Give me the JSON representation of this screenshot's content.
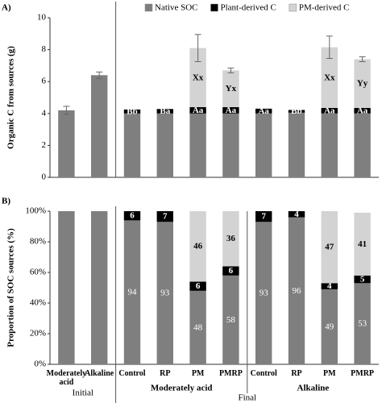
{
  "chart_data": [
    {
      "type": "bar",
      "stacked": true,
      "panel_label": "A)",
      "ylabel": "Organic C from sources (g)",
      "categories": [
        "Moderately acid",
        "Alkaline",
        "Control",
        "RP",
        "PM",
        "PMRP",
        "Control",
        "RP",
        "PM",
        "PMRP"
      ],
      "series": [
        {
          "name": "Native SOC",
          "color": "#7f7f7f",
          "values": [
            4.2,
            6.4,
            4.0,
            4.0,
            4.0,
            4.0,
            4.0,
            4.05,
            4.0,
            4.0
          ]
        },
        {
          "name": "Plant-derived C",
          "color": "#000000",
          "values": [
            null,
            null,
            0.25,
            0.28,
            0.4,
            0.4,
            0.3,
            0.17,
            0.35,
            0.35
          ],
          "letters": [
            null,
            null,
            "Bb",
            "Ba",
            "Aa",
            "Aa",
            "Aa",
            "Bb",
            "Aa",
            "Aa"
          ]
        },
        {
          "name": "PM-derived C",
          "color": "#d3d3d3",
          "values": [
            null,
            null,
            null,
            null,
            3.7,
            2.3,
            null,
            null,
            3.8,
            3.05
          ],
          "letters": [
            null,
            null,
            null,
            null,
            "Xx",
            "Yx",
            null,
            null,
            "Xx",
            "Yy"
          ]
        }
      ],
      "errors": [
        0.25,
        0.2,
        null,
        null,
        0.85,
        0.15,
        null,
        null,
        0.7,
        0.15
      ],
      "ylim": [
        0,
        10
      ],
      "yticks": [
        0,
        2,
        4,
        6,
        8,
        10
      ],
      "legend": "top"
    },
    {
      "type": "bar",
      "stacked": true,
      "panel_label": "B)",
      "ylabel": "Proportion of SOC sources (%)",
      "categories": [
        "Moderately acid",
        "Alkaline",
        "Control",
        "RP",
        "PM",
        "PMRP",
        "Control",
        "RP",
        "PM",
        "PMRP"
      ],
      "group_labels": [
        "Initial",
        "Moderately acid",
        "Alkaline",
        "Final"
      ],
      "series": [
        {
          "color": "#7f7f7f",
          "values": [
            100,
            100,
            94,
            93,
            48,
            58,
            93,
            96,
            49,
            53
          ],
          "value_labels": [
            null,
            null,
            "94",
            "93",
            "48",
            "58",
            "93",
            "96",
            "49",
            "53"
          ]
        },
        {
          "color": "#000000",
          "values": [
            null,
            null,
            6,
            7,
            6,
            6,
            7,
            4,
            4,
            5
          ],
          "value_labels": [
            null,
            null,
            "6",
            "7",
            "6",
            "6",
            "7",
            "4",
            "4",
            "5"
          ]
        },
        {
          "color": "#d3d3d3",
          "values": [
            null,
            null,
            null,
            null,
            46,
            36,
            null,
            null,
            47,
            41
          ],
          "value_labels": [
            null,
            null,
            null,
            null,
            "46",
            "36",
            null,
            null,
            "47",
            "41"
          ]
        }
      ],
      "ylim": [
        0,
        100
      ],
      "yticks": [
        {
          "value": 0,
          "label": "0%"
        },
        {
          "value": 20,
          "label": "20%"
        },
        {
          "value": 40,
          "label": "40%"
        },
        {
          "value": 60,
          "label": "60%"
        },
        {
          "value": 80,
          "label": "80%"
        },
        {
          "value": 100,
          "label": "100%"
        }
      ]
    }
  ]
}
